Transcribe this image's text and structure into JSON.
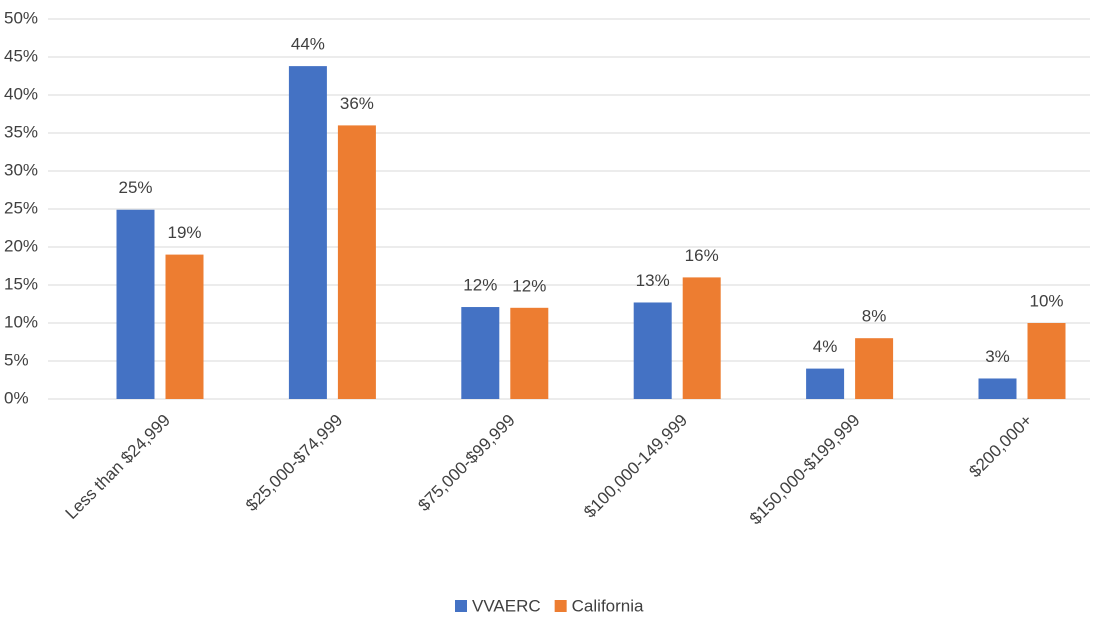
{
  "chart_data": {
    "type": "bar",
    "categories": [
      "Less than $24,999",
      "$25,000-$74,999",
      "$75,000-$99,999",
      "$100,000-149,999",
      "$150,000-$199,999",
      "$200,000+"
    ],
    "series": [
      {
        "name": "VVAERC",
        "color": "#4472c4",
        "values": [
          24.9,
          43.8,
          12.1,
          12.7,
          4.0,
          2.7
        ],
        "value_labels": [
          "25%",
          "44%",
          "12%",
          "13%",
          "4%",
          "3%"
        ]
      },
      {
        "name": "California",
        "color": "#ed7d31",
        "values": [
          19.0,
          36.0,
          12.0,
          16.0,
          8.0,
          10.0
        ],
        "value_labels": [
          "19%",
          "36%",
          "12%",
          "16%",
          "8%",
          "10%"
        ]
      }
    ],
    "ylim": [
      0,
      50
    ],
    "yticks": [
      {
        "value": 0,
        "label": "0%"
      },
      {
        "value": 5,
        "label": "5%"
      },
      {
        "value": 10,
        "label": "10%"
      },
      {
        "value": 15,
        "label": "15%"
      },
      {
        "value": 20,
        "label": "20%"
      },
      {
        "value": 25,
        "label": "25%"
      },
      {
        "value": 30,
        "label": "30%"
      },
      {
        "value": 35,
        "label": "35%"
      },
      {
        "value": 40,
        "label": "40%"
      },
      {
        "value": 45,
        "label": "45%"
      },
      {
        "value": 50,
        "label": "50%"
      }
    ],
    "grid": true,
    "legend": "bottom"
  }
}
